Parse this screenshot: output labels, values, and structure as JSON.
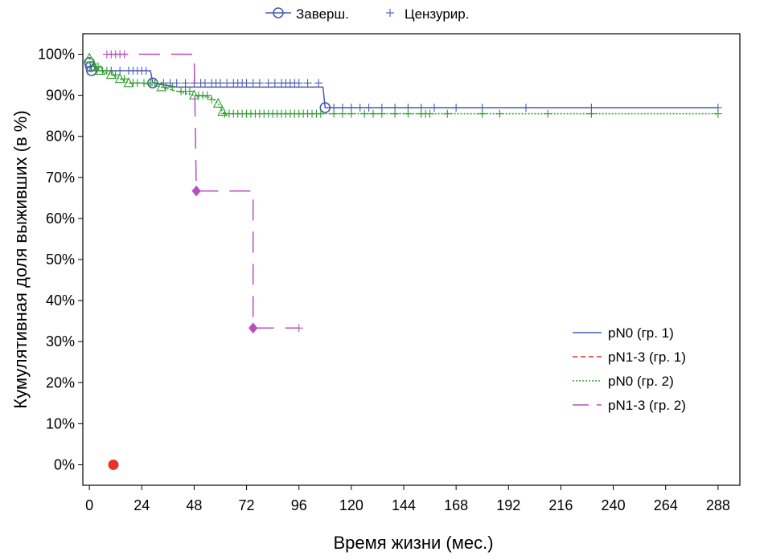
{
  "chart_data": {
    "type": "line",
    "title": "",
    "xlabel": "Время жизни (мес.)",
    "ylabel": "Кумулятивная доля выживших (в %)",
    "xlim": [
      -3,
      298
    ],
    "ylim": [
      -5,
      105
    ],
    "xticks": [
      0,
      24,
      48,
      72,
      96,
      120,
      144,
      168,
      192,
      216,
      240,
      264,
      288
    ],
    "xtick_labels": [
      "0",
      "24",
      "48",
      "72",
      "96",
      "120",
      "144",
      "168",
      "192",
      "216",
      "240",
      "264",
      "288"
    ],
    "yticks": [
      0,
      10,
      20,
      30,
      40,
      50,
      60,
      70,
      80,
      90,
      100
    ],
    "ytick_labels": [
      "0%",
      "10%",
      "20%",
      "30%",
      "40%",
      "50%",
      "60%",
      "70%",
      "80%",
      "90%",
      "100%"
    ],
    "grid": false,
    "legend_position": "bottom-right",
    "legend": [
      "pN0 (гр. 1)",
      "pN1-3 (гр. 1)",
      "pN0 (гр. 2)",
      "pN1-3 (гр. 2)"
    ],
    "marker_legend": {
      "position": "top",
      "complete_label": "Заверш.",
      "censored_label": "Цензурир."
    },
    "series": [
      {
        "name": "pN0 (гр. 1)",
        "color": "#4a5bb0",
        "style": "solid",
        "marker": "circle",
        "steps": [
          [
            0,
            98
          ],
          [
            0.5,
            97.5
          ],
          [
            1,
            96
          ],
          [
            28,
            96
          ],
          [
            29,
            93
          ],
          [
            40,
            92
          ],
          [
            107,
            92
          ],
          [
            108,
            87
          ],
          [
            288,
            87
          ]
        ],
        "events": [
          [
            0,
            98
          ],
          [
            0.5,
            97
          ],
          [
            1,
            96
          ],
          [
            29,
            93
          ],
          [
            108,
            87
          ]
        ],
        "censored": [
          [
            10,
            96
          ],
          [
            14,
            96
          ],
          [
            18,
            96
          ],
          [
            20,
            96
          ],
          [
            22,
            96
          ],
          [
            24,
            96
          ],
          [
            26,
            96
          ],
          [
            30,
            93
          ],
          [
            34,
            93
          ],
          [
            37,
            93
          ],
          [
            40,
            93
          ],
          [
            44,
            93
          ],
          [
            48,
            93
          ],
          [
            51,
            93
          ],
          [
            53,
            93
          ],
          [
            56,
            93
          ],
          [
            58,
            93
          ],
          [
            60,
            93
          ],
          [
            63,
            93
          ],
          [
            66,
            93
          ],
          [
            68,
            93
          ],
          [
            70,
            93
          ],
          [
            72,
            93
          ],
          [
            75,
            93
          ],
          [
            78,
            93
          ],
          [
            82,
            93
          ],
          [
            85,
            93
          ],
          [
            88,
            93
          ],
          [
            90,
            93
          ],
          [
            92,
            93
          ],
          [
            94,
            93
          ],
          [
            96,
            93
          ],
          [
            100,
            93
          ],
          [
            105,
            93
          ],
          [
            112,
            87
          ],
          [
            116,
            87
          ],
          [
            120,
            87
          ],
          [
            124,
            87
          ],
          [
            128,
            87
          ],
          [
            134,
            87
          ],
          [
            140,
            87
          ],
          [
            146,
            87
          ],
          [
            152,
            87
          ],
          [
            158,
            87
          ],
          [
            168,
            87
          ],
          [
            180,
            87
          ],
          [
            200,
            87
          ],
          [
            230,
            87
          ],
          [
            288,
            87
          ]
        ]
      },
      {
        "name": "pN1-3 (гр. 1)",
        "color": "#e8322a",
        "style": "dashed",
        "marker": "circle-filled",
        "steps": [],
        "events": [
          [
            11,
            0
          ]
        ],
        "censored": []
      },
      {
        "name": "pN0 (гр. 2)",
        "color": "#2e9b2e",
        "style": "dotted",
        "marker": "triangle",
        "steps": [
          [
            0,
            99
          ],
          [
            2,
            97
          ],
          [
            5,
            96
          ],
          [
            10,
            95
          ],
          [
            14,
            94
          ],
          [
            18,
            93
          ],
          [
            24,
            93
          ],
          [
            33,
            92
          ],
          [
            40,
            91
          ],
          [
            48,
            90
          ],
          [
            55,
            89.5
          ],
          [
            57,
            89
          ],
          [
            59,
            88
          ],
          [
            60,
            87
          ],
          [
            61,
            86
          ],
          [
            62,
            85.5
          ],
          [
            288,
            85.5
          ]
        ],
        "events": [
          [
            0,
            99
          ],
          [
            2,
            97
          ],
          [
            5,
            96
          ],
          [
            10,
            95
          ],
          [
            14,
            94
          ],
          [
            18,
            93
          ],
          [
            33,
            92
          ],
          [
            48,
            90
          ],
          [
            59,
            88
          ],
          [
            61,
            86
          ]
        ],
        "censored": [
          [
            3,
            97
          ],
          [
            4,
            97
          ],
          [
            6,
            96
          ],
          [
            8,
            96
          ],
          [
            12,
            95
          ],
          [
            16,
            94
          ],
          [
            20,
            93
          ],
          [
            22,
            93
          ],
          [
            25,
            93
          ],
          [
            28,
            93
          ],
          [
            30,
            93
          ],
          [
            35,
            92
          ],
          [
            38,
            92
          ],
          [
            42,
            91
          ],
          [
            44,
            91
          ],
          [
            46,
            91
          ],
          [
            50,
            90
          ],
          [
            52,
            90
          ],
          [
            54,
            90
          ],
          [
            56,
            89
          ],
          [
            62,
            85.5
          ],
          [
            64,
            85.5
          ],
          [
            66,
            85.5
          ],
          [
            68,
            85.5
          ],
          [
            70,
            85.5
          ],
          [
            72,
            85.5
          ],
          [
            74,
            85.5
          ],
          [
            76,
            85.5
          ],
          [
            78,
            85.5
          ],
          [
            80,
            85.5
          ],
          [
            82,
            85.5
          ],
          [
            84,
            85.5
          ],
          [
            86,
            85.5
          ],
          [
            88,
            85.5
          ],
          [
            90,
            85.5
          ],
          [
            92,
            85.5
          ],
          [
            94,
            85.5
          ],
          [
            96,
            85.5
          ],
          [
            98,
            85.5
          ],
          [
            100,
            85.5
          ],
          [
            102,
            85.5
          ],
          [
            104,
            85.5
          ],
          [
            106,
            85.5
          ],
          [
            112,
            85.5
          ],
          [
            116,
            85.5
          ],
          [
            120,
            85.5
          ],
          [
            126,
            85.5
          ],
          [
            130,
            85.5
          ],
          [
            134,
            85.5
          ],
          [
            140,
            85.5
          ],
          [
            146,
            85.5
          ],
          [
            152,
            85.5
          ],
          [
            154,
            85.5
          ],
          [
            156,
            85.5
          ],
          [
            164,
            85.5
          ],
          [
            180,
            85.5
          ],
          [
            188,
            85.5
          ],
          [
            210,
            85.5
          ],
          [
            230,
            85.5
          ],
          [
            288,
            85.5
          ]
        ]
      },
      {
        "name": "pN1-3 (гр. 2)",
        "color": "#b84fc0",
        "style": "longdash",
        "marker": "diamond",
        "steps": [
          [
            8,
            100
          ],
          [
            48,
            100
          ],
          [
            49,
            66.7
          ],
          [
            75,
            66.7
          ],
          [
            75,
            33.3
          ],
          [
            96,
            33.3
          ]
        ],
        "events": [
          [
            49,
            66.7
          ],
          [
            75,
            33.3
          ]
        ],
        "censored": [
          [
            8,
            100
          ],
          [
            10,
            100
          ],
          [
            12,
            100
          ],
          [
            14,
            100
          ],
          [
            16,
            100
          ],
          [
            96,
            33.3
          ]
        ]
      }
    ]
  }
}
